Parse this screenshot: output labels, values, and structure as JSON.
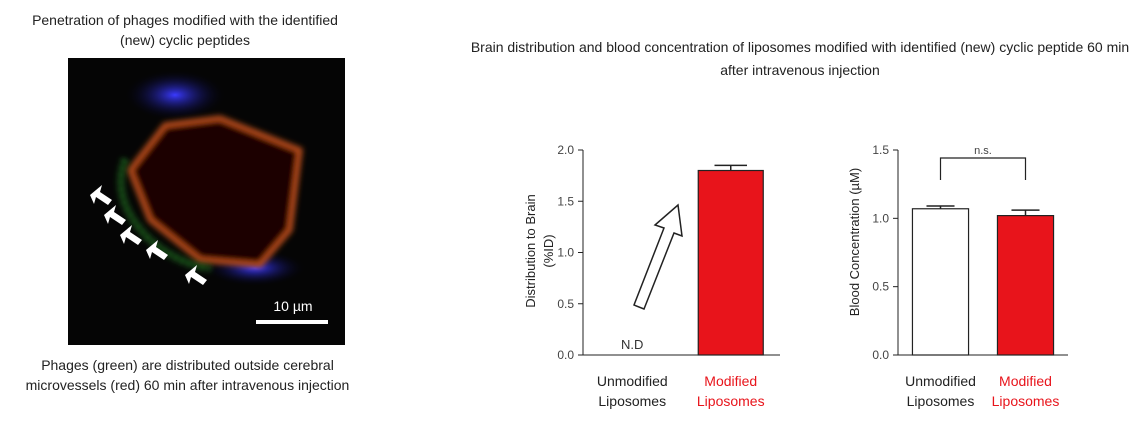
{
  "image_panel": {
    "title": "Penetration of phages modified with the identified (new) cyclic peptides",
    "scale_bar": "10 µm",
    "caption": "Phages (green) are distributed outside cerebral microvessels (red) 60 min after intravenous injection"
  },
  "figure_title": "Brain distribution and blood concentration of liposomes modified with identified (new) cyclic peptide 60 min after intravenous injection",
  "chart_data": [
    {
      "type": "bar",
      "ylabel": "Distribution to Brain (%ID)",
      "categories": [
        "Unmodified Liposomes",
        "Modified Liposomes"
      ],
      "label_colors": [
        "#222222",
        "#e8141b"
      ],
      "values": [
        null,
        1.8
      ],
      "errors": [
        null,
        0.05
      ],
      "value_labels": [
        "N.D",
        null
      ],
      "colors": [
        "#ffffff",
        "#e8141b"
      ],
      "ylim": [
        0,
        2
      ],
      "yticks": [
        {
          "value": 0,
          "label": "0.0"
        },
        {
          "value": 0.5,
          "label": "0.5"
        },
        {
          "value": 1,
          "label": "1.0"
        },
        {
          "value": 1.5,
          "label": "1.5"
        },
        {
          "value": 2,
          "label": "2.0"
        }
      ]
    },
    {
      "type": "bar",
      "ylabel": "Blood Concentration (µM)",
      "categories": [
        "Unmodified Liposomes",
        "Modified Liposomes"
      ],
      "label_colors": [
        "#222222",
        "#e8141b"
      ],
      "values": [
        1.07,
        1.02
      ],
      "errors": [
        0.02,
        0.04
      ],
      "colors": [
        "#ffffff",
        "#e8141b"
      ],
      "bracket_label": "n.s.",
      "ylim": [
        0,
        1.5
      ],
      "yticks": [
        {
          "value": 0,
          "label": "0.0"
        },
        {
          "value": 0.5,
          "label": "0.5"
        },
        {
          "value": 1,
          "label": "1.0"
        },
        {
          "value": 1.5,
          "label": "1.5"
        }
      ]
    }
  ]
}
